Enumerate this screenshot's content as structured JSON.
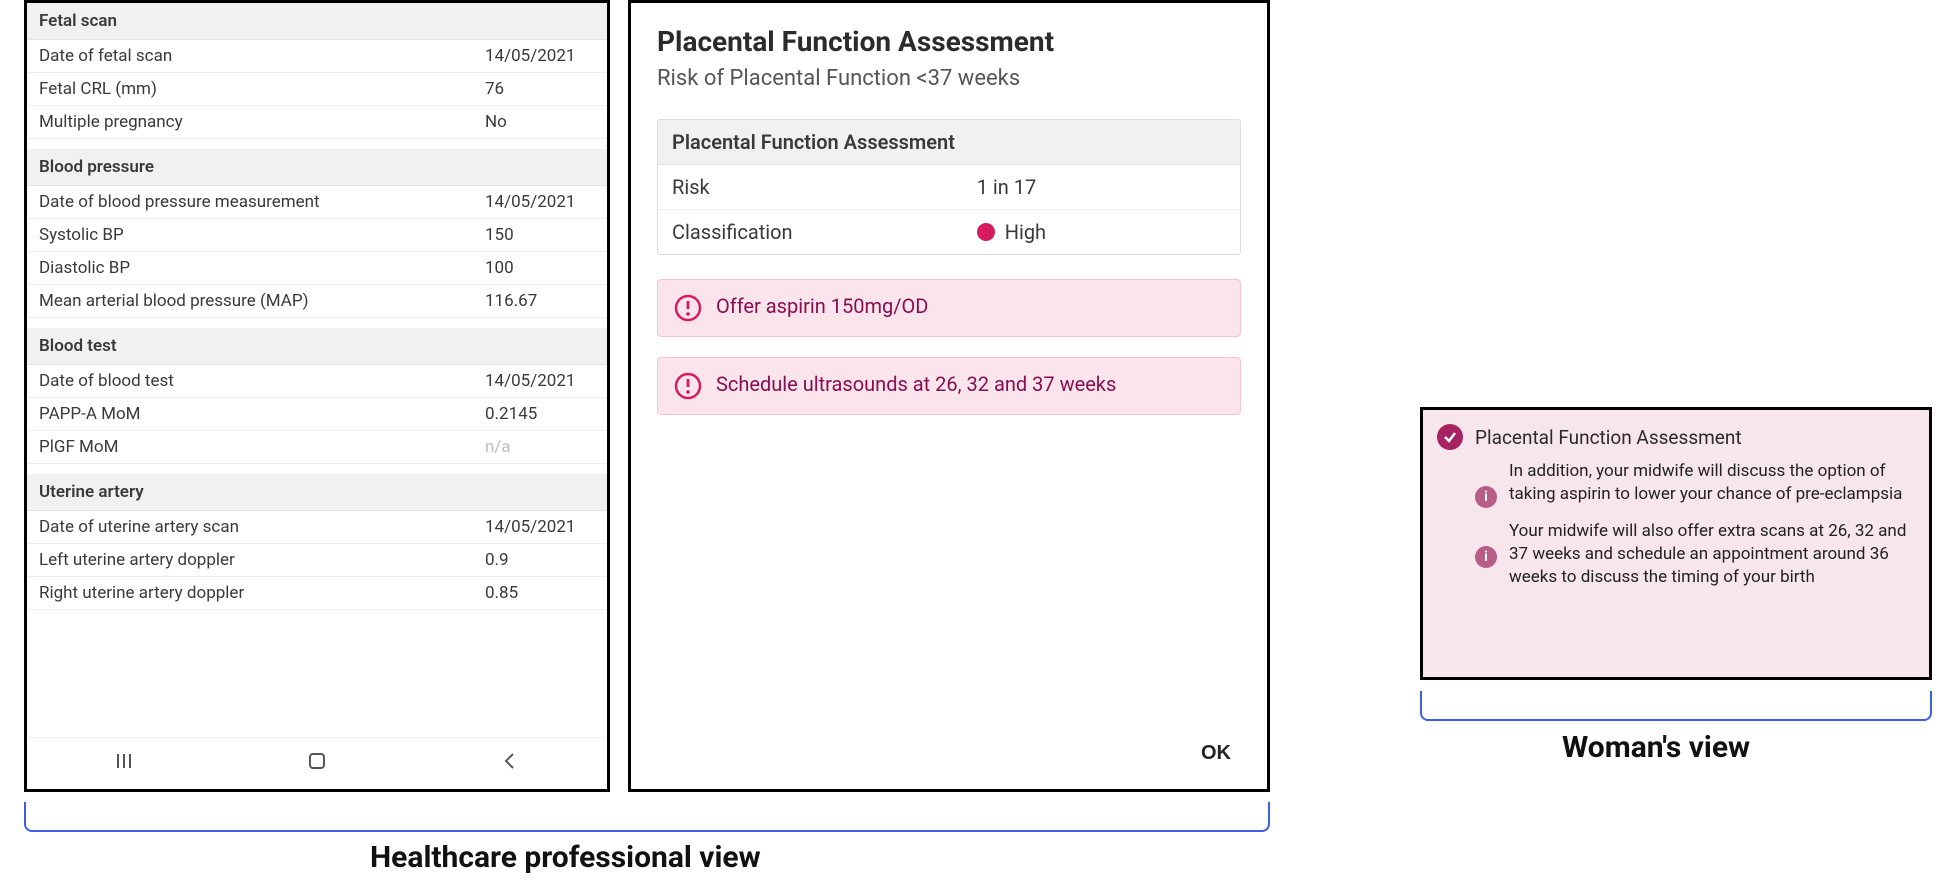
{
  "colors": {
    "panel_border": "#000000",
    "section_bg": "#f1f1f1",
    "row_divider": "#ededed",
    "text_primary": "#3a3a3a",
    "text_muted": "#bdbdbd",
    "pink_bg": "#fce4ec",
    "pink_border": "#f8c4d4",
    "pink_text": "#880e4f",
    "dot_high": "#d81b60",
    "wv_bg": "#f8e6ed",
    "wv_check_bg": "#a62261",
    "wv_info_bg": "#b85d87",
    "bracket": "#3b5fe0"
  },
  "left": {
    "sections": [
      {
        "header": "Fetal scan",
        "rows": [
          {
            "label": "Date of fetal scan",
            "value": "14/05/2021"
          },
          {
            "label": "Fetal CRL (mm)",
            "value": "76"
          },
          {
            "label": "Multiple pregnancy",
            "value": "No"
          }
        ]
      },
      {
        "header": "Blood pressure",
        "rows": [
          {
            "label": "Date of blood pressure measurement",
            "value": "14/05/2021"
          },
          {
            "label": "Systolic BP",
            "value": "150"
          },
          {
            "label": "Diastolic BP",
            "value": "100"
          },
          {
            "label": "Mean arterial blood pressure (MAP)",
            "value": "116.67"
          }
        ]
      },
      {
        "header": "Blood test",
        "rows": [
          {
            "label": "Date of blood test",
            "value": "14/05/2021"
          },
          {
            "label": "PAPP-A MoM",
            "value": "0.2145"
          },
          {
            "label": "PlGF MoM",
            "value": "n/a",
            "na": true
          }
        ]
      },
      {
        "header": "Uterine artery",
        "rows": [
          {
            "label": "Date of uterine artery scan",
            "value": "14/05/2021"
          },
          {
            "label": "Left uterine artery doppler",
            "value": "0.9"
          },
          {
            "label": "Right uterine artery doppler",
            "value": "0.85"
          }
        ]
      }
    ],
    "nav": {
      "recent": "|||",
      "home": "○",
      "back": "‹"
    }
  },
  "center": {
    "title": "Placental Function Assessment",
    "subtitle": "Risk of Placental Function <37 weeks",
    "card": {
      "header": "Placental Function Assessment",
      "risk_label": "Risk",
      "risk_value": "1 in 17",
      "class_label": "Classification",
      "class_value": "High"
    },
    "alerts": [
      "Offer aspirin 150mg/OD",
      "Schedule ultrasounds at 26, 32 and 37 weeks"
    ],
    "ok_label": "OK"
  },
  "right": {
    "header": "Placental Function Assessment",
    "items": [
      "In addition, your midwife will discuss the option of taking aspirin to lower your chance of pre-eclampsia",
      "Your midwife will also offer extra scans at 26, 32 and 37 weeks and schedule an appointment around 36 weeks to discuss the timing of your birth"
    ]
  },
  "captions": {
    "left": "Healthcare professional view",
    "right": "Woman's view"
  }
}
